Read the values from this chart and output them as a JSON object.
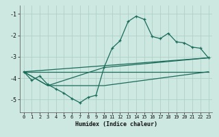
{
  "xlabel": "Humidex (Indice chaleur)",
  "background_color": "#cce8e0",
  "grid_color": "#b0d0c8",
  "line_color": "#1a6b5a",
  "xlim": [
    -0.5,
    23.5
  ],
  "ylim": [
    -5.6,
    -0.6
  ],
  "yticks": [
    -5,
    -4,
    -3,
    -2,
    -1
  ],
  "xticks": [
    0,
    1,
    2,
    3,
    4,
    5,
    6,
    7,
    8,
    9,
    10,
    11,
    12,
    13,
    14,
    15,
    16,
    17,
    18,
    19,
    20,
    21,
    22,
    23
  ],
  "line1_x": [
    0,
    1,
    2,
    3,
    4,
    5,
    6,
    7,
    8,
    9,
    10,
    11,
    12,
    13,
    14,
    15,
    16,
    17,
    18,
    19,
    20,
    21,
    22,
    23
  ],
  "line1_y": [
    -3.7,
    -4.1,
    -3.9,
    -4.3,
    -4.5,
    -4.7,
    -4.95,
    -5.15,
    -4.9,
    -4.8,
    -3.5,
    -2.6,
    -2.25,
    -1.35,
    -1.1,
    -1.25,
    -2.05,
    -2.15,
    -1.9,
    -2.3,
    -2.35,
    -2.55,
    -2.6,
    -3.05
  ],
  "line2_x": [
    0,
    23
  ],
  "line2_y": [
    -3.7,
    -3.05
  ],
  "line3_x": [
    0,
    23
  ],
  "line3_y": [
    -3.7,
    -3.7
  ],
  "line4_x": [
    0,
    3,
    10,
    23
  ],
  "line4_y": [
    -3.7,
    -4.35,
    -3.5,
    -3.05
  ],
  "line5_x": [
    0,
    3,
    10,
    23
  ],
  "line5_y": [
    -3.7,
    -4.35,
    -4.35,
    -3.7
  ]
}
